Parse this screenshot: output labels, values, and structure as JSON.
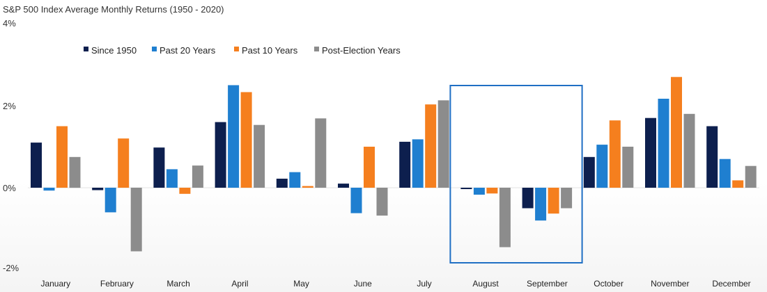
{
  "chart_data": {
    "type": "bar",
    "title": "S&P 500 Index Average Monthly Returns (1950 - 2020)",
    "y_tick_labels": [
      "4%",
      "2%",
      "0%",
      "-2%"
    ],
    "y_ticks": [
      4,
      2,
      0,
      -2
    ],
    "ylim": [
      -2,
      4
    ],
    "unit": "%",
    "grid": false,
    "legend_position": "top-left",
    "categories": [
      "January",
      "February",
      "March",
      "April",
      "May",
      "June",
      "July",
      "August",
      "September",
      "October",
      "November",
      "December"
    ],
    "series": [
      {
        "name": "Since 1950",
        "color": "#0d1f4e",
        "values": [
          1.1,
          -0.06,
          0.98,
          1.6,
          0.22,
          0.1,
          1.12,
          -0.02,
          -0.5,
          0.75,
          1.7,
          1.5
        ]
      },
      {
        "name": "Past 20 Years",
        "color": "#1f7fd0",
        "values": [
          -0.07,
          -0.6,
          0.45,
          2.5,
          0.38,
          -0.62,
          1.18,
          -0.17,
          -0.8,
          1.05,
          2.17,
          0.7
        ]
      },
      {
        "name": "Past 10 Years",
        "color": "#f57f1e",
        "values": [
          1.5,
          1.2,
          -0.15,
          2.33,
          0.04,
          1.0,
          2.03,
          -0.14,
          -0.63,
          1.64,
          2.7,
          0.18
        ]
      },
      {
        "name": "Post-Election Years",
        "color": "#8c8c8c",
        "values": [
          0.75,
          -1.55,
          0.54,
          1.53,
          1.69,
          -0.68,
          2.13,
          -1.45,
          -0.5,
          1.0,
          1.8,
          0.53
        ]
      }
    ],
    "highlight": {
      "categories": [
        "August",
        "September"
      ],
      "color": "#1f6fc4"
    }
  }
}
